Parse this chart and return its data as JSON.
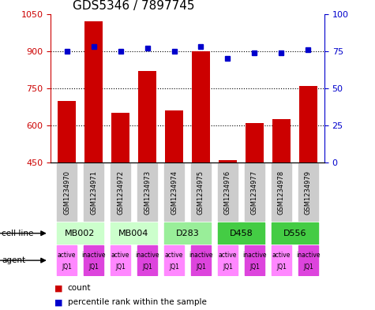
{
  "title": "GDS5346 / 7897745",
  "samples": [
    "GSM1234970",
    "GSM1234971",
    "GSM1234972",
    "GSM1234973",
    "GSM1234974",
    "GSM1234975",
    "GSM1234976",
    "GSM1234977",
    "GSM1234978",
    "GSM1234979"
  ],
  "counts": [
    700,
    1020,
    650,
    820,
    660,
    900,
    460,
    610,
    625,
    760
  ],
  "percentiles": [
    75,
    78,
    75,
    77,
    75,
    78,
    70,
    74,
    74,
    76
  ],
  "ylim_left": [
    450,
    1050
  ],
  "ylim_right": [
    0,
    100
  ],
  "yticks_left": [
    450,
    600,
    750,
    900,
    1050
  ],
  "yticks_right": [
    0,
    25,
    50,
    75,
    100
  ],
  "cell_lines": [
    {
      "label": "MB002",
      "cols": [
        0,
        1
      ],
      "color": "#ccffcc"
    },
    {
      "label": "MB004",
      "cols": [
        2,
        3
      ],
      "color": "#ccffcc"
    },
    {
      "label": "D283",
      "cols": [
        4,
        5
      ],
      "color": "#99ee99"
    },
    {
      "label": "D458",
      "cols": [
        6,
        7
      ],
      "color": "#44cc44"
    },
    {
      "label": "D556",
      "cols": [
        8,
        9
      ],
      "color": "#44cc44"
    }
  ],
  "agents": [
    {
      "label": "active\nJQ1",
      "color": "#ff88ff"
    },
    {
      "label": "inactive\nJQ1",
      "color": "#dd44dd"
    },
    {
      "label": "active\nJQ1",
      "color": "#ff88ff"
    },
    {
      "label": "inactive\nJQ1",
      "color": "#dd44dd"
    },
    {
      "label": "active\nJQ1",
      "color": "#ff88ff"
    },
    {
      "label": "inactive\nJQ1",
      "color": "#dd44dd"
    },
    {
      "label": "active\nJQ1",
      "color": "#ff88ff"
    },
    {
      "label": "inactive\nJQ1",
      "color": "#dd44dd"
    },
    {
      "label": "active\nJQ1",
      "color": "#ff88ff"
    },
    {
      "label": "inactive\nJQ1",
      "color": "#dd44dd"
    }
  ],
  "bar_color": "#cc0000",
  "dot_color": "#0000cc",
  "grid_color": "#000000",
  "sample_bg_color": "#cccccc",
  "legend_red": "count",
  "legend_blue": "percentile rank within the sample"
}
